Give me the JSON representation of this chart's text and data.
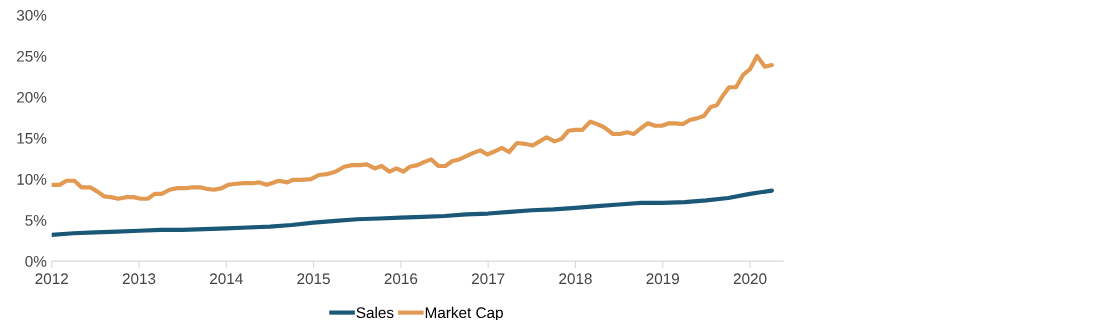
{
  "chart_data": {
    "type": "line",
    "xlim": [
      2012,
      2020.38
    ],
    "xticks": [
      2012,
      2013,
      2014,
      2015,
      2016,
      2017,
      2018,
      2019,
      2020
    ],
    "ylim": [
      0,
      30
    ],
    "yticks": [
      {
        "value": 0,
        "label": "0%"
      },
      {
        "value": 5,
        "label": "5%"
      },
      {
        "value": 10,
        "label": "10%"
      },
      {
        "value": 15,
        "label": "15%"
      },
      {
        "value": 20,
        "label": "20%"
      },
      {
        "value": 25,
        "label": "25%"
      },
      {
        "value": 30,
        "label": "30%"
      }
    ],
    "grid": false,
    "legend": "bottom",
    "line_style": "solid",
    "marker": "none",
    "series": [
      {
        "name": "Sales",
        "color": "#1b5777",
        "x": [
          2012.0,
          2012.25,
          2012.5,
          2012.75,
          2013.0,
          2013.25,
          2013.5,
          2013.75,
          2014.0,
          2014.25,
          2014.5,
          2014.75,
          2015.0,
          2015.25,
          2015.5,
          2015.75,
          2016.0,
          2016.25,
          2016.5,
          2016.75,
          2017.0,
          2017.25,
          2017.5,
          2017.75,
          2018.0,
          2018.25,
          2018.5,
          2018.75,
          2019.0,
          2019.25,
          2019.5,
          2019.75,
          2020.0,
          2020.25
        ],
        "values": [
          3.2,
          3.4,
          3.5,
          3.6,
          3.7,
          3.8,
          3.8,
          3.9,
          4.0,
          4.1,
          4.2,
          4.4,
          4.7,
          4.9,
          5.1,
          5.2,
          5.3,
          5.4,
          5.5,
          5.7,
          5.8,
          6.0,
          6.2,
          6.3,
          6.5,
          6.7,
          6.9,
          7.1,
          7.1,
          7.2,
          7.4,
          7.7,
          8.2,
          8.6
        ]
      },
      {
        "name": "Market Cap",
        "color": "#e29a53",
        "x": [
          2012.0,
          2012.09,
          2012.17,
          2012.26,
          2012.34,
          2012.44,
          2012.52,
          2012.6,
          2012.68,
          2012.76,
          2012.86,
          2012.94,
          2013.02,
          2013.1,
          2013.18,
          2013.26,
          2013.35,
          2013.44,
          2013.54,
          2013.62,
          2013.7,
          2013.78,
          2013.86,
          2013.95,
          2014.02,
          2014.09,
          2014.2,
          2014.3,
          2014.38,
          2014.46,
          2014.52,
          2014.6,
          2014.7,
          2014.76,
          2014.86,
          2014.97,
          2015.06,
          2015.15,
          2015.25,
          2015.35,
          2015.44,
          2015.53,
          2015.61,
          2015.7,
          2015.78,
          2015.87,
          2015.95,
          2016.03,
          2016.1,
          2016.19,
          2016.27,
          2016.35,
          2016.43,
          2016.51,
          2016.59,
          2016.67,
          2016.75,
          2016.83,
          2016.91,
          2016.99,
          2017.08,
          2017.16,
          2017.24,
          2017.33,
          2017.42,
          2017.51,
          2017.59,
          2017.67,
          2017.76,
          2017.84,
          2017.92,
          2018.0,
          2018.08,
          2018.17,
          2018.25,
          2018.33,
          2018.43,
          2018.51,
          2018.59,
          2018.67,
          2018.75,
          2018.83,
          2018.91,
          2018.99,
          2019.07,
          2019.15,
          2019.23,
          2019.31,
          2019.39,
          2019.47,
          2019.55,
          2019.62,
          2019.69,
          2019.76,
          2019.84,
          2019.92,
          2020.0,
          2020.08,
          2020.17,
          2020.25
        ],
        "values": [
          9.3,
          9.3,
          9.8,
          9.8,
          9.0,
          9.0,
          8.5,
          7.9,
          7.8,
          7.6,
          7.8,
          7.8,
          7.6,
          7.6,
          8.2,
          8.2,
          8.7,
          8.9,
          8.9,
          9.0,
          9.0,
          8.8,
          8.7,
          8.9,
          9.3,
          9.4,
          9.5,
          9.5,
          9.6,
          9.3,
          9.5,
          9.8,
          9.6,
          9.9,
          9.9,
          10.0,
          10.5,
          10.6,
          10.9,
          11.5,
          11.7,
          11.7,
          11.8,
          11.3,
          11.6,
          10.9,
          11.3,
          10.9,
          11.5,
          11.7,
          12.1,
          12.4,
          11.6,
          11.6,
          12.2,
          12.4,
          12.8,
          13.2,
          13.5,
          13.0,
          13.4,
          13.8,
          13.3,
          14.4,
          14.3,
          14.1,
          14.6,
          15.1,
          14.6,
          14.9,
          15.9,
          16.0,
          16.0,
          17.0,
          16.7,
          16.3,
          15.5,
          15.5,
          15.7,
          15.5,
          16.2,
          16.8,
          16.5,
          16.5,
          16.8,
          16.8,
          16.7,
          17.2,
          17.4,
          17.7,
          18.8,
          19.0,
          20.2,
          21.2,
          21.2,
          22.7,
          23.4,
          25.0,
          23.7,
          23.9
        ]
      }
    ]
  }
}
